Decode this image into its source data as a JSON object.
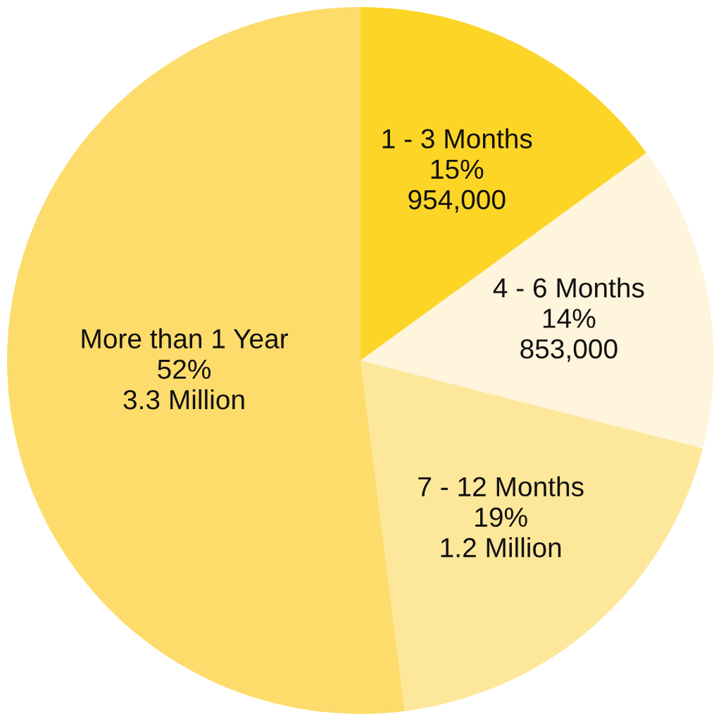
{
  "chart_data": {
    "type": "pie",
    "categories": [
      "1 - 3 Months",
      "4 - 6 Months",
      "7 - 12 Months",
      "More than 1 Year"
    ],
    "values": [
      15,
      14,
      19,
      52
    ],
    "value_labels": [
      "15%\n954,000",
      "14%\n853,000",
      "19%\n1.2 Million",
      "52%\n3.3 Million"
    ],
    "colors": [
      "#fdd526",
      "#fff4dc",
      "#fde79a",
      "#fddc6c"
    ]
  }
}
